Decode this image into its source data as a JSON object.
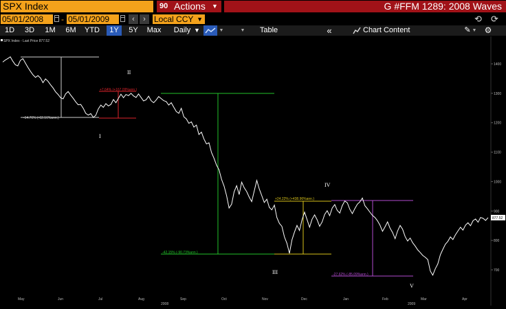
{
  "header": {
    "ticker": "SPX Index",
    "actions_icon": "90",
    "actions_label": "Actions",
    "title": "G #FFM 1289: 2008 Waves"
  },
  "range": {
    "start": "05/01/2008",
    "separator": "-",
    "end": "05/01/2009",
    "currency": "Local CCY"
  },
  "toolbar": {
    "periods": [
      "1D",
      "3D",
      "1M",
      "6M",
      "YTD",
      "1Y",
      "5Y",
      "Max"
    ],
    "selected": "1Y",
    "frequency": "Daily",
    "table": "Table",
    "chart_content": "Chart Content"
  },
  "icons": {
    "calendar": "calendar-icon",
    "prev": "chevron-left-icon",
    "next": "chevron-right-icon",
    "undo": "undo-icon",
    "redo": "redo-icon",
    "line_chart": "line-chart-icon",
    "collapse": "double-chevron-left-icon",
    "gear": "gear-icon"
  },
  "colors": {
    "accent": "#f4a21b",
    "header_red": "#a11218",
    "selected_blue": "#2a5bb8",
    "price_line": "#ffffff",
    "green": "#22c22a",
    "red": "#e0242c",
    "yellow": "#d8c21a",
    "purple": "#b24bd0",
    "white_line": "#cfcfcf"
  },
  "chart_data": {
    "type": "line",
    "legend": "SPX Index - Last Price 877.52",
    "last_price": 877.52,
    "y_ticks": [
      700,
      800,
      900,
      1000,
      1100,
      1200,
      1300,
      1400
    ],
    "ylim": [
      660,
      1450
    ],
    "x_month_labels": [
      "May",
      "Jun",
      "Jul",
      "Aug",
      "Sep",
      "Oct",
      "Nov",
      "Dec",
      "Jan",
      "Feb",
      "Mar",
      "Apr"
    ],
    "x_year_labels": [
      "2008",
      "2009"
    ],
    "series": [
      {
        "values": [
          1406,
          1413,
          1418,
          1424,
          1409,
          1397,
          1393,
          1412,
          1418,
          1403,
          1388,
          1375,
          1363,
          1354,
          1360,
          1352,
          1336,
          1349,
          1341,
          1329,
          1318,
          1305,
          1296,
          1285,
          1281,
          1298,
          1306,
          1294,
          1283,
          1271,
          1261,
          1262,
          1249,
          1232,
          1226,
          1231,
          1218,
          1225,
          1247,
          1260,
          1252,
          1265,
          1257,
          1262,
          1279,
          1268,
          1283,
          1297,
          1285,
          1296,
          1292,
          1300,
          1291,
          1286,
          1298,
          1286,
          1274,
          1278,
          1290,
          1275,
          1268,
          1277,
          1289,
          1282,
          1275,
          1272,
          1260,
          1268,
          1253,
          1238,
          1232,
          1249,
          1220,
          1213,
          1198,
          1203,
          1185,
          1192,
          1160,
          1168,
          1145,
          1128,
          1132,
          1099,
          1079,
          1056,
          1040,
          1008,
          985,
          952,
          910,
          923,
          965,
          986,
          956,
          998,
          979,
          966,
          947,
          932,
          968,
          1004,
          975,
          952,
          929,
          940,
          912,
          904,
          920,
          878,
          858,
          848,
          812,
          790,
          756,
          802,
          828,
          851,
          834,
          870,
          896,
          871,
          845,
          872,
          887,
          870,
          848,
          863,
          888,
          901,
          884,
          910,
          922,
          902,
          893,
          918,
          934,
          928,
          906,
          891,
          908,
          923,
          931,
          944,
          918,
          908,
          896,
          885,
          878,
          867,
          852,
          831,
          846,
          863,
          842,
          827,
          806,
          832,
          851,
          838,
          813,
          798,
          808,
          792,
          781,
          768,
          759,
          749,
          743,
          735,
          696,
          682,
          704,
          720,
          751,
          770,
          787,
          797,
          812,
          803,
          819,
          832,
          845,
          835,
          852,
          860,
          850,
          867,
          873,
          862,
          878,
          875,
          868,
          877.52
        ]
      }
    ],
    "annotations": [
      {
        "label": "I",
        "kind": "wave"
      },
      {
        "label": "II",
        "kind": "wave"
      },
      {
        "label": "III",
        "kind": "wave"
      },
      {
        "label": "IV",
        "kind": "wave"
      },
      {
        "label": "V",
        "kind": "wave"
      },
      {
        "label": "-14.76% (-62.16%ann.)",
        "color": "white_line"
      },
      {
        "label": "+7.64% (+167.09%ann.)",
        "color": "red"
      },
      {
        "label": "-42.15% (-90.73%ann.)",
        "color": "green"
      },
      {
        "label": "+24.22% (+438.96%ann.)",
        "color": "yellow"
      },
      {
        "label": "-27.62% (-85.09%ann.)",
        "color": "purple"
      }
    ]
  }
}
